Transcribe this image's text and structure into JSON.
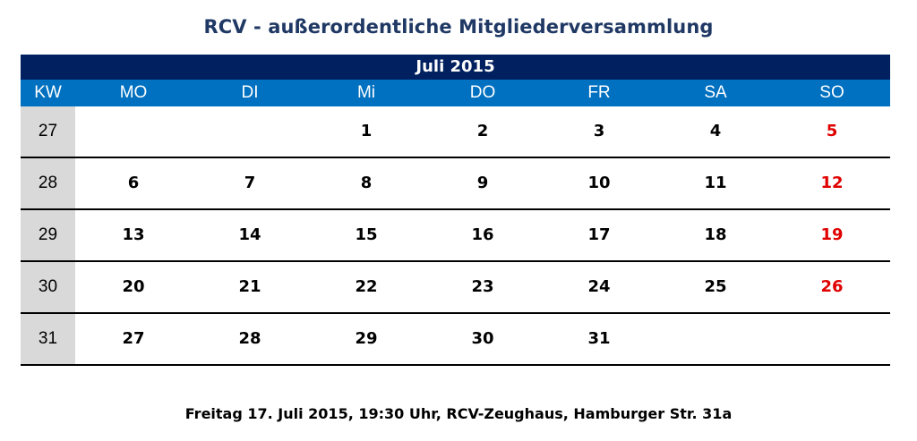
{
  "title": "RCV - außerordentliche Mitgliederversammlung",
  "month_label": "Juli 2015",
  "headers": {
    "kw": "KW",
    "days": [
      "MO",
      "DI",
      "Mi",
      "DO",
      "FR",
      "SA",
      "SO"
    ]
  },
  "weeks": [
    {
      "kw": "27",
      "days": [
        "",
        "",
        "1",
        "2",
        "3",
        "4",
        "5"
      ]
    },
    {
      "kw": "28",
      "days": [
        "6",
        "7",
        "8",
        "9",
        "10",
        "11",
        "12"
      ]
    },
    {
      "kw": "29",
      "days": [
        "13",
        "14",
        "15",
        "16",
        "17",
        "18",
        "19"
      ]
    },
    {
      "kw": "30",
      "days": [
        "20",
        "21",
        "22",
        "23",
        "24",
        "25",
        "26"
      ]
    },
    {
      "kw": "31",
      "days": [
        "27",
        "28",
        "29",
        "30",
        "31",
        "",
        ""
      ]
    }
  ],
  "footer": "Freitag 17. Juli 2015, 19:30 Uhr, RCV-Zeughaus, Hamburger Str. 31a",
  "colors": {
    "title": "#1f3864",
    "month_bar": "#002060",
    "header_bar": "#0070c0",
    "kw_column": "#d9d9d9",
    "sunday": "#e00000"
  }
}
